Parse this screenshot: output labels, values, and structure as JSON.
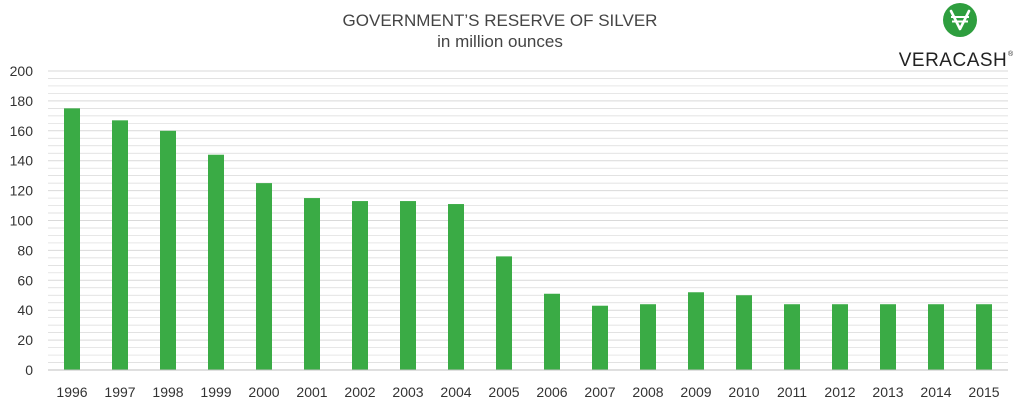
{
  "chart_data": {
    "type": "bar",
    "title": "GOVERNMENT’S RESERVE OF SILVER",
    "subtitle": "in million ounces",
    "xlabel": "",
    "ylabel": "",
    "categories": [
      "1996",
      "1997",
      "1998",
      "1999",
      "2000",
      "2001",
      "2002",
      "2003",
      "2004",
      "2005",
      "2006",
      "2007",
      "2008",
      "2009",
      "2010",
      "2011",
      "2012",
      "2013",
      "2014",
      "2015"
    ],
    "values": [
      175,
      167,
      160,
      144,
      125,
      115,
      113,
      113,
      111,
      76,
      51,
      43,
      44,
      52,
      50,
      44,
      44,
      44,
      44,
      44
    ],
    "ylim": [
      0,
      200
    ],
    "yticks": [
      "0",
      "20",
      "40",
      "60",
      "80",
      "100",
      "120",
      "140",
      "160",
      "180",
      "200"
    ],
    "grid": true,
    "legend": "none",
    "bar_color": "#3aab45",
    "grid_color": "#d9d9d9"
  },
  "logo": {
    "text": "VERACASH",
    "registered_mark": "®",
    "icon": "veracash-currency-icon",
    "icon_color": "#2e9e3e"
  }
}
